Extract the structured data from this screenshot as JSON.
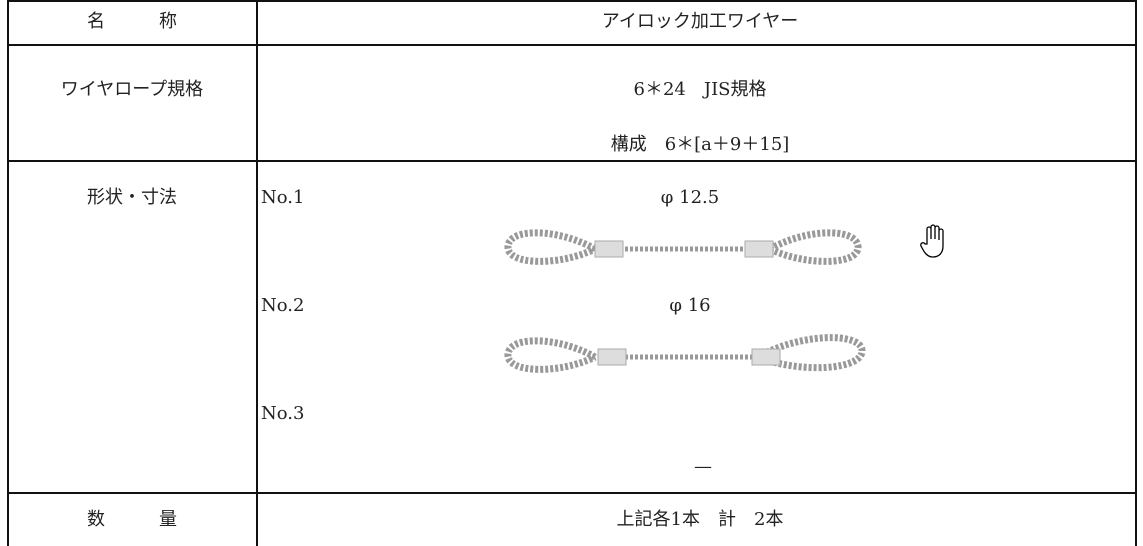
{
  "table": {
    "rows": [
      {
        "label": "名　　　称",
        "value": "アイロック加工ワイヤー"
      },
      {
        "label": "ワイヤロープ規格",
        "lines": [
          "6＊24　JIS規格",
          "構成　6＊[a＋9＋15]"
        ]
      },
      {
        "label": "形状・寸法",
        "items": [
          {
            "no": "No.1",
            "size": "φ 12.5"
          },
          {
            "no": "No.2",
            "size": "φ 16"
          },
          {
            "no": "No.3",
            "size": "—"
          }
        ]
      },
      {
        "label": "数　　　量",
        "value": "上記各1本　計　2本"
      }
    ]
  }
}
